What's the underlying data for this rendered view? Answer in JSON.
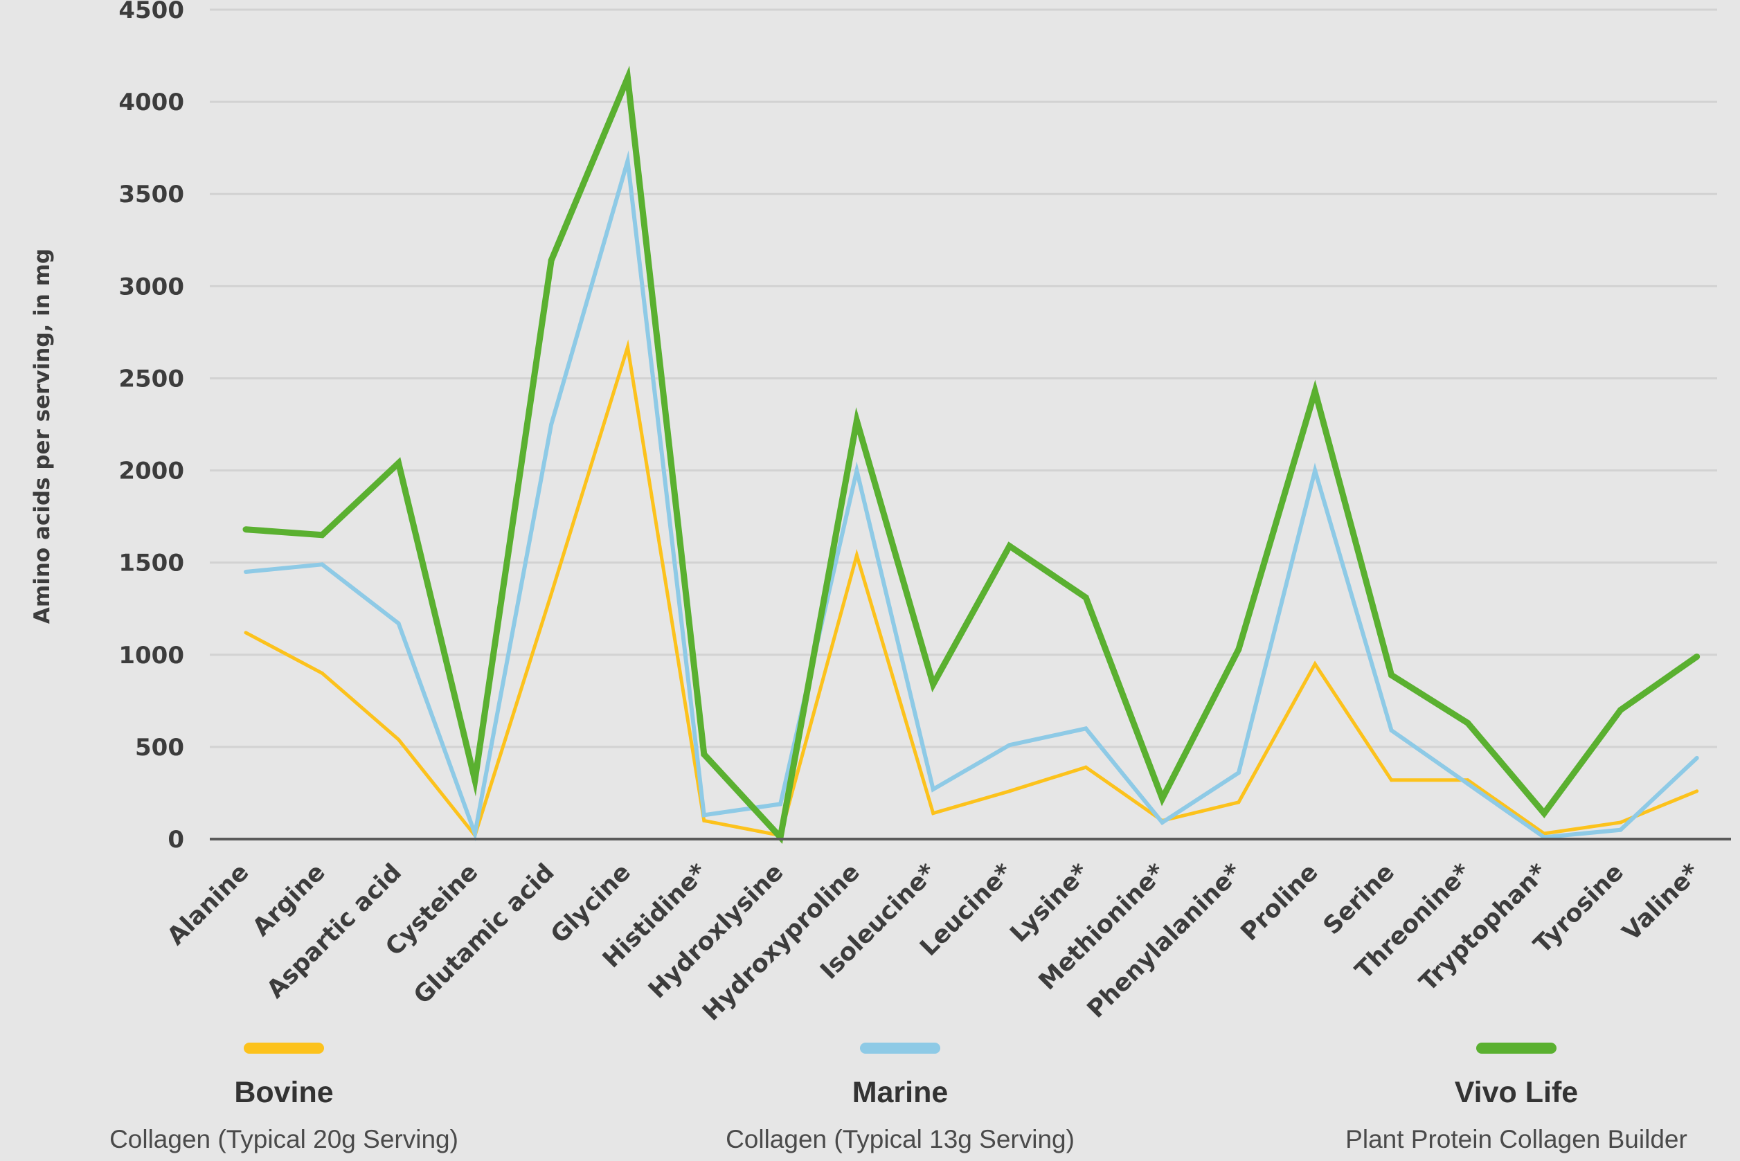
{
  "chart_data": {
    "type": "line",
    "title": "",
    "xlabel": "",
    "ylabel": "Amino acids per serving, in mg",
    "ylim": [
      0,
      4500
    ],
    "yticks": [
      0,
      500,
      1000,
      1500,
      2000,
      2500,
      3000,
      3500,
      4000,
      4500
    ],
    "grid": true,
    "legend_position": "bottom",
    "categories": [
      "Alanine",
      "Argine",
      "Aspartic acid",
      "Cysteine",
      "Glutamic acid",
      "Glycine",
      "Histidine*",
      "Hydroxlysine",
      "Hydroxyproline",
      "Isoleucine*",
      "Leucine*",
      "Lysine*",
      "Methionine*",
      "Phenylalanine*",
      "Proline",
      "Serine",
      "Threonine*",
      "Tryptophan*",
      "Tyrosine",
      "Valine*"
    ],
    "series": [
      {
        "name": "Bovine",
        "description": "Collagen (Typical 20g Serving)",
        "color": "#fcc21c",
        "values": [
          1120,
          900,
          540,
          20,
          1330,
          2670,
          100,
          20,
          1540,
          140,
          260,
          390,
          100,
          200,
          950,
          320,
          320,
          30,
          90,
          260
        ]
      },
      {
        "name": "Marine",
        "description": "Collagen (Typical 13g Serving)",
        "color": "#8ecae6",
        "values": [
          1450,
          1490,
          1170,
          30,
          2250,
          3680,
          130,
          190,
          2000,
          270,
          510,
          600,
          90,
          360,
          2000,
          590,
          300,
          10,
          50,
          440
        ]
      },
      {
        "name": "Vivo Life",
        "description": "Plant Protein Collagen Builder",
        "color": "#5ab030",
        "values": [
          1680,
          1650,
          2040,
          320,
          3140,
          4130,
          460,
          10,
          2270,
          840,
          1590,
          1310,
          220,
          1030,
          2430,
          890,
          630,
          140,
          700,
          990
        ]
      }
    ]
  }
}
